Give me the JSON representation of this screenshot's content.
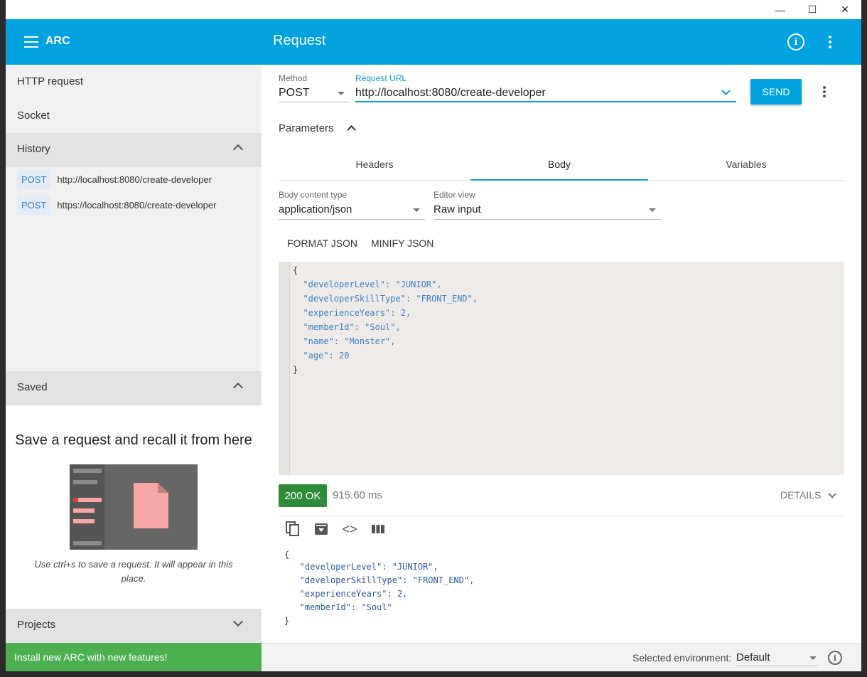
{
  "window": {
    "minimize": "—",
    "maximize": "☐",
    "close": "✕"
  },
  "topbar": {
    "app_name": "ARC",
    "title": "Request"
  },
  "sidebar": {
    "nav": [
      {
        "label": "HTTP request"
      },
      {
        "label": "Socket"
      }
    ],
    "history": {
      "label": "History",
      "items": [
        {
          "method": "POST",
          "url": "http://localhost:8080/create-developer"
        },
        {
          "method": "POST",
          "url": "https://localhost:8080/create-developer"
        }
      ]
    },
    "saved": {
      "label": "Saved",
      "empty_title": "Save a request and recall it from here",
      "hint": "Use ctrl+s to save a request. It will appear in this place."
    },
    "projects": {
      "label": "Projects"
    },
    "install_banner": "Install new ARC with new features!"
  },
  "request": {
    "method_label": "Method",
    "method": "POST",
    "url_label": "Request URL",
    "url": "http://localhost:8080/create-developer",
    "send": "SEND",
    "parameters": "Parameters",
    "tabs": [
      {
        "label": "Headers"
      },
      {
        "label": "Body"
      },
      {
        "label": "Variables"
      }
    ],
    "active_tab": "Body",
    "body_type_label": "Body content type",
    "body_type": "application/json",
    "editor_view_label": "Editor view",
    "editor_view": "Raw input",
    "format_json": "FORMAT JSON",
    "minify_json": "MINIFY JSON",
    "body_lines": [
      "{",
      "  \"developerLevel\": \"JUNIOR\",",
      "  \"developerSkillType\": \"FRONT_END\",",
      "  \"experienceYears\": 2,",
      "  \"memberId\": \"Soul\",",
      "  \"name\": \"Monster\",",
      "  \"age\": 20",
      "}"
    ]
  },
  "response": {
    "status": "200 OK",
    "time": "915.60 ms",
    "details": "DETAILS",
    "lines": [
      "{",
      "   \"developerLevel\": \"JUNIOR\",",
      "   \"developerSkillType\": \"FRONT_END\",",
      "   \"experienceYears\": 2,",
      "   \"memberId\": \"Soul\"",
      "}"
    ]
  },
  "footer": {
    "env_label": "Selected environment:",
    "env_value": "Default"
  },
  "colors": {
    "accent": "#00a2df",
    "status_ok": "#2e8b3a",
    "install": "#4caf50"
  }
}
